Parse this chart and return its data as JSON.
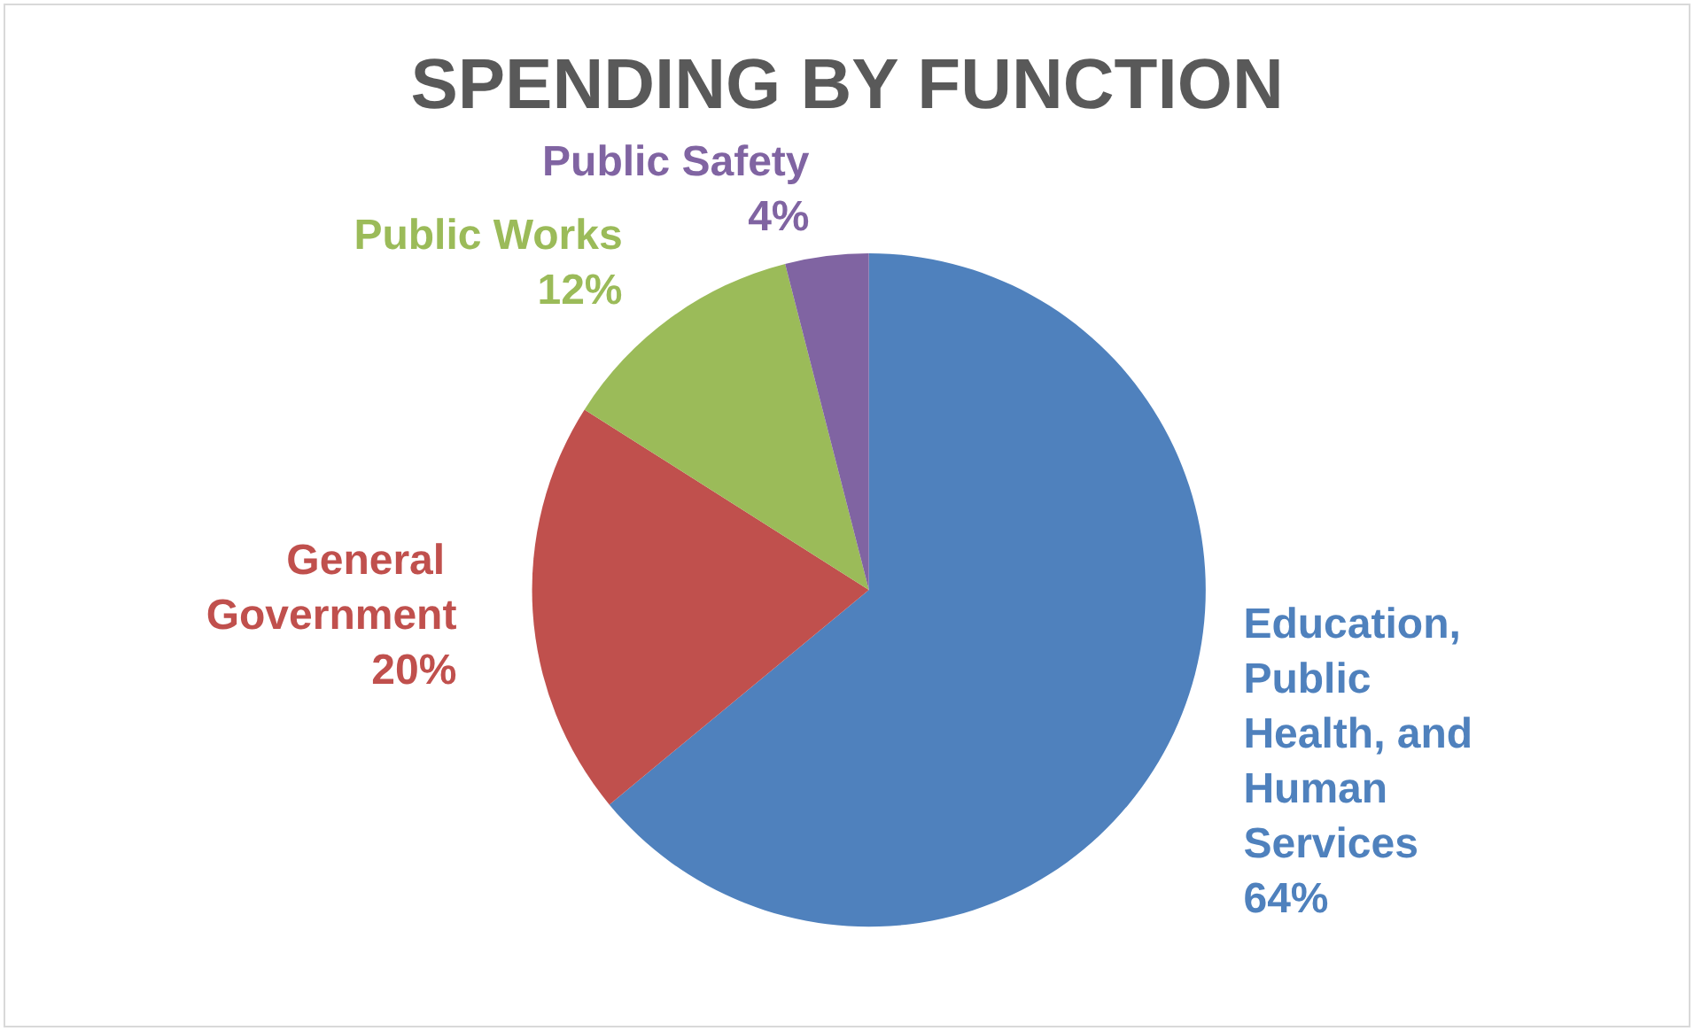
{
  "chart_data": {
    "type": "pie",
    "title": "SPENDING BY FUNCTION",
    "categories": [
      "Education, Public Health, and Human Services",
      "General Government",
      "Public Works",
      "Public Safety"
    ],
    "values": [
      64,
      20,
      12,
      4
    ],
    "colors": [
      "#4f81bd",
      "#c0504d",
      "#9bbb59",
      "#8064a2"
    ],
    "value_labels": [
      "64%",
      "20%",
      "12%",
      "4%"
    ],
    "legend": false
  }
}
